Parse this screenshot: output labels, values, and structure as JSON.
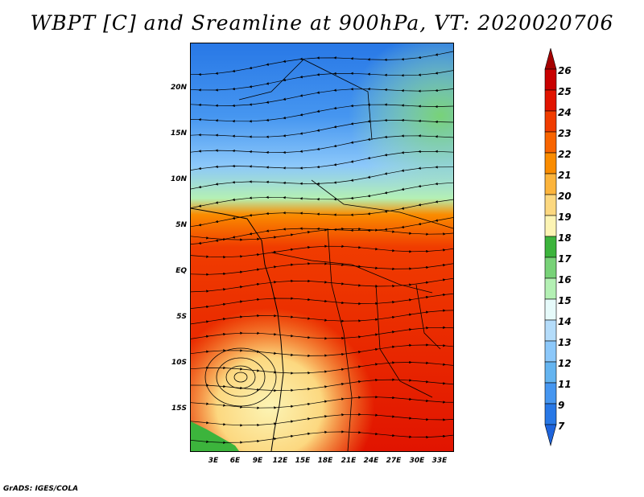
{
  "title": "WBPT [C] and Sreamline at 900hPa, VT: 2020020706",
  "footer": "GrADS: IGES/COLA",
  "map": {
    "variable": "WBPT",
    "units": "C",
    "level": "900hPa",
    "valid_time": "2020020706",
    "lon_range": [
      0,
      35
    ],
    "lat_range": [
      -20,
      24
    ],
    "lat_ticks": [
      "20N",
      "15N",
      "10N",
      "5N",
      "EQ",
      "5S",
      "10S",
      "15S"
    ],
    "lon_ticks": [
      "3E",
      "6E",
      "9E",
      "12E",
      "15E",
      "18E",
      "21E",
      "24E",
      "27E",
      "30E",
      "33E"
    ],
    "overlay": "streamlines with arrows",
    "features": [
      "cyclonic circulation near 6E 10S",
      "coastlines",
      "country borders"
    ]
  },
  "colorbar": {
    "labels": [
      "26",
      "25",
      "24",
      "23",
      "22",
      "21",
      "20",
      "19",
      "18",
      "17",
      "16",
      "15",
      "14",
      "13",
      "12",
      "11",
      "9",
      "7"
    ],
    "colors": [
      "#a50000",
      "#c80000",
      "#e11400",
      "#f03c00",
      "#f86400",
      "#fa8c00",
      "#fcb43c",
      "#fcd880",
      "#fcf4b4",
      "#3cb43c",
      "#78d278",
      "#b4f0b4",
      "#e6fafa",
      "#b4dcfa",
      "#8cc8fa",
      "#64b4f0",
      "#4696f0",
      "#2878e6",
      "#1e64dc"
    ]
  }
}
